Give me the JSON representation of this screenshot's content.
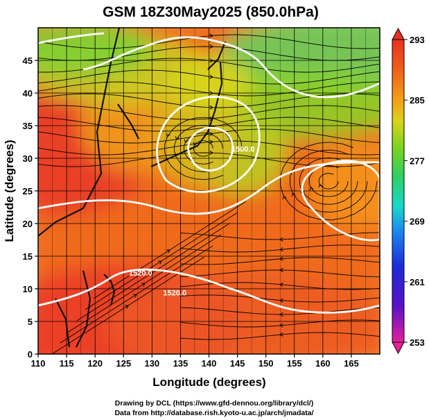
{
  "chart_data": {
    "type": "heatmap",
    "title": "GSM 18Z30May2025 (850.0hPa)",
    "xlabel": "Longitude (degrees)",
    "ylabel": "Latitude  (degrees)",
    "xlim": [
      110,
      170
    ],
    "ylim": [
      0,
      50
    ],
    "x_ticks": [
      110,
      115,
      120,
      125,
      130,
      135,
      140,
      145,
      150,
      155,
      160,
      165
    ],
    "x_tick_labels": [
      "110",
      "115",
      "120",
      "125",
      "130",
      "135",
      "140",
      "145",
      "150",
      "155",
      "160",
      "165"
    ],
    "y_ticks": [
      0,
      5,
      10,
      15,
      20,
      25,
      30,
      35,
      40,
      45
    ],
    "y_tick_labels": [
      "0",
      "5",
      "10",
      "15",
      "20",
      "25",
      "30",
      "35",
      "40",
      "45"
    ],
    "grid": true,
    "colorbar": {
      "placement": "right",
      "min": 253,
      "max": 293,
      "tick_values": [
        293,
        285,
        277,
        269,
        261,
        253
      ],
      "tick_labels": [
        "293",
        "285",
        "277",
        "269",
        "261",
        "253"
      ]
    },
    "contour_labels": [
      {
        "text": "1520.0",
        "lon": 128,
        "lat": 12
      },
      {
        "text": "1520.0",
        "lon": 134,
        "lat": 9
      },
      {
        "text": "1500.0",
        "lon": 146,
        "lat": 31
      }
    ]
  },
  "credits": [
    "Drawing by DCL (https://www.gfd-dennou.org/library/dcl/)",
    "Data from http://database.rish.kyoto-u.ac.jp/arch/jmadata/"
  ]
}
